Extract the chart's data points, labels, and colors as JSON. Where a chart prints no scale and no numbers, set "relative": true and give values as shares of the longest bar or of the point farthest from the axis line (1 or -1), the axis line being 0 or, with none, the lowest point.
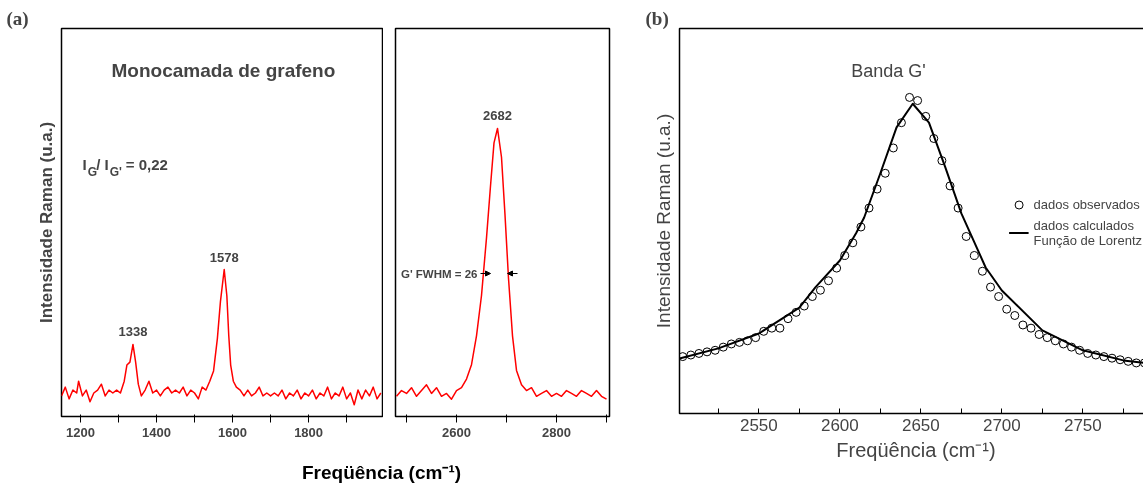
{
  "chart_data": [
    {
      "type": "line",
      "title": "Monocamada de grafeno",
      "xlabel": "Freqüência (cm⁻¹)",
      "ylabel": "Intensidade Raman (u.a.)",
      "relative": true,
      "annotations": [
        "(a)",
        "I$_{G}$/ I$_{G'}$ = 0,22",
        {
          "text": "1338",
          "x": 1338,
          "y": 0.49
        },
        {
          "text": "1578",
          "x": 1578,
          "y": 1.0
        }
      ],
      "xlim": [
        1150,
        1997
      ],
      "xticks": [
        1200,
        {
          "value": 1300,
          "label": null
        },
        1400,
        {
          "value": 1500,
          "label": null
        },
        1600,
        {
          "value": 1700,
          "label": null
        },
        1800,
        {
          "value": 1900,
          "label": null
        }
      ],
      "x": [
        1150,
        1160,
        1170,
        1180,
        1190,
        1195,
        1205,
        1215,
        1225,
        1235,
        1245,
        1255,
        1265,
        1275,
        1285,
        1295,
        1305,
        1315,
        1322,
        1330,
        1338,
        1345,
        1352,
        1360,
        1370,
        1380,
        1390,
        1400,
        1410,
        1420,
        1430,
        1440,
        1450,
        1460,
        1470,
        1480,
        1490,
        1500,
        1510,
        1520,
        1530,
        1540,
        1550,
        1560,
        1568,
        1578,
        1585,
        1590,
        1595,
        1602,
        1610,
        1620,
        1630,
        1640,
        1650,
        1660,
        1670,
        1680,
        1690,
        1700,
        1710,
        1720,
        1730,
        1740,
        1750,
        1760,
        1770,
        1780,
        1790,
        1800,
        1810,
        1820,
        1830,
        1840,
        1850,
        1860,
        1870,
        1880,
        1890,
        1900,
        1910,
        1920,
        1930,
        1940,
        1950,
        1960,
        1970,
        1980,
        1990
      ],
      "series": [
        {
          "color": "#ff0000",
          "values": [
            0.14,
            0.2,
            0.12,
            0.18,
            0.16,
            0.24,
            0.14,
            0.18,
            0.1,
            0.16,
            0.18,
            0.22,
            0.14,
            0.18,
            0.16,
            0.18,
            0.16,
            0.24,
            0.35,
            0.37,
            0.49,
            0.37,
            0.22,
            0.14,
            0.18,
            0.24,
            0.16,
            0.18,
            0.14,
            0.18,
            0.2,
            0.16,
            0.18,
            0.16,
            0.2,
            0.14,
            0.18,
            0.16,
            0.12,
            0.2,
            0.18,
            0.24,
            0.31,
            0.53,
            0.78,
            1.0,
            0.82,
            0.55,
            0.35,
            0.24,
            0.2,
            0.18,
            0.14,
            0.18,
            0.14,
            0.16,
            0.2,
            0.14,
            0.16,
            0.14,
            0.16,
            0.14,
            0.18,
            0.12,
            0.16,
            0.14,
            0.18,
            0.12,
            0.16,
            0.14,
            0.18,
            0.12,
            0.16,
            0.14,
            0.2,
            0.12,
            0.16,
            0.14,
            0.2,
            0.12,
            0.16,
            0.08,
            0.18,
            0.12,
            0.18,
            0.14,
            0.2,
            0.12,
            0.16
          ]
        }
      ]
    },
    {
      "type": "line",
      "relative": true,
      "annotations": [
        {
          "text": "2682",
          "x": 2682,
          "y": 1.0
        },
        "G' FWHM = 26"
      ],
      "xlim": [
        2478,
        2906
      ],
      "xticks": [
        {
          "value": 2500,
          "label": null
        },
        2600,
        {
          "value": 2700,
          "label": null
        },
        2800,
        {
          "value": 2900,
          "label": null
        }
      ],
      "x": [
        2480,
        2490,
        2500,
        2510,
        2520,
        2530,
        2540,
        2550,
        2560,
        2570,
        2580,
        2590,
        2600,
        2610,
        2620,
        2630,
        2640,
        2650,
        2660,
        2668,
        2675,
        2682,
        2690,
        2697,
        2704,
        2712,
        2720,
        2730,
        2740,
        2750,
        2760,
        2770,
        2780,
        2790,
        2800,
        2810,
        2820,
        2830,
        2840,
        2850,
        2860,
        2870,
        2880,
        2890,
        2900
      ],
      "series": [
        {
          "color": "#ff0000",
          "values": [
            0.07,
            0.09,
            0.08,
            0.1,
            0.07,
            0.09,
            0.11,
            0.08,
            0.1,
            0.07,
            0.08,
            0.06,
            0.09,
            0.1,
            0.13,
            0.18,
            0.28,
            0.42,
            0.62,
            0.8,
            0.95,
            1.0,
            0.9,
            0.7,
            0.48,
            0.28,
            0.16,
            0.11,
            0.09,
            0.1,
            0.07,
            0.08,
            0.09,
            0.07,
            0.08,
            0.07,
            0.09,
            0.08,
            0.07,
            0.09,
            0.08,
            0.07,
            0.09,
            0.07,
            0.06
          ]
        }
      ]
    },
    {
      "type": "line",
      "xlabel": "Freqüência (cm⁻¹)",
      "ylabel": "Intensidade Raman (u.a.)",
      "relative": true,
      "legend": "right",
      "annotations": [
        "(b)",
        "Banda G'"
      ],
      "xlim": [
        2501,
        2793
      ],
      "xticks": [
        {
          "value": 2525,
          "label": null
        },
        2550,
        {
          "value": 2575,
          "label": null
        },
        2600,
        {
          "value": 2625,
          "label": null
        },
        2650,
        {
          "value": 2675,
          "label": null
        },
        2700,
        {
          "value": 2725,
          "label": null
        },
        2750,
        {
          "value": 2775,
          "label": null
        }
      ],
      "series": [
        {
          "type": "scatter",
          "marker": "circle",
          "name": "dados observados",
          "color": "#000000",
          "x": [
            2503,
            2508,
            2513,
            2518,
            2523,
            2528,
            2533,
            2538,
            2543,
            2548,
            2553,
            2558,
            2563,
            2568,
            2573,
            2578,
            2583,
            2588,
            2593,
            2598,
            2603,
            2608,
            2613,
            2618,
            2623,
            2628,
            2633,
            2638,
            2643,
            2648,
            2653,
            2658,
            2663,
            2668,
            2673,
            2678,
            2683,
            2688,
            2693,
            2698,
            2703,
            2708,
            2713,
            2718,
            2723,
            2728,
            2733,
            2738,
            2743,
            2748,
            2753,
            2758,
            2763,
            2768,
            2773,
            2778,
            2783,
            2788
          ],
          "values": [
            0.18,
            0.185,
            0.19,
            0.195,
            0.2,
            0.21,
            0.22,
            0.225,
            0.23,
            0.24,
            0.26,
            0.27,
            0.27,
            0.3,
            0.32,
            0.34,
            0.37,
            0.39,
            0.42,
            0.46,
            0.5,
            0.54,
            0.59,
            0.65,
            0.71,
            0.76,
            0.84,
            0.92,
            1.0,
            0.99,
            0.94,
            0.87,
            0.8,
            0.72,
            0.65,
            0.56,
            0.5,
            0.45,
            0.4,
            0.37,
            0.33,
            0.31,
            0.28,
            0.27,
            0.25,
            0.24,
            0.23,
            0.22,
            0.21,
            0.2,
            0.19,
            0.185,
            0.18,
            0.175,
            0.17,
            0.165,
            0.16,
            0.16
          ]
        },
        {
          "type": "line",
          "name": "dados calculados\nFunção de Lorentz",
          "color": "#000000",
          "x": [
            2501,
            2525,
            2550,
            2575,
            2585,
            2600,
            2610,
            2615,
            2625,
            2635,
            2645,
            2655,
            2665,
            2675,
            2690,
            2700,
            2725,
            2750,
            2775,
            2790
          ],
          "values": [
            0.174,
            0.206,
            0.253,
            0.335,
            0.4,
            0.484,
            0.57,
            0.62,
            0.76,
            0.905,
            0.98,
            0.92,
            0.78,
            0.633,
            0.462,
            0.389,
            0.263,
            0.2,
            0.168,
            0.159
          ]
        }
      ]
    }
  ]
}
